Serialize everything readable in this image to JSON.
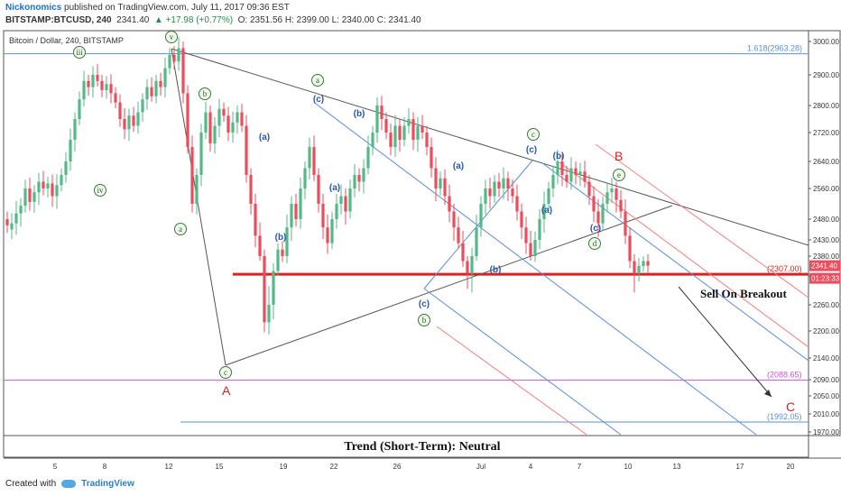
{
  "header": {
    "author": "Nickonomics",
    "published_text": "published on TradingView.com, July 11, 2017 09:36 EST",
    "symbol": "BITSTAMP:BTCUSD, 240",
    "last": "2341.40",
    "change": "▲ +17.98 (+0.77%)",
    "ohlc": "O: 2351.56  H: 2399.00  L: 2340.00  C: 2341.40"
  },
  "chart_title": "Bitcoin / Dollar, 240, BITSTAMP",
  "footer": {
    "created_with": "Created with",
    "brand": "TradingView"
  },
  "chart_data": {
    "type": "candlestick",
    "y_ticks": [
      "3000.00",
      "2900.00",
      "2800.00",
      "2720.00",
      "2640.00",
      "2560.00",
      "2480.00",
      "2430.00",
      "2380.00",
      "2300.00",
      "2260.00",
      "2200.00",
      "2140.00",
      "2090.00",
      "2050.00",
      "2010.00",
      "1970.00"
    ],
    "x_ticks": [
      "5",
      "8",
      "12",
      "15",
      "19",
      "22",
      "26",
      "Jul",
      "4",
      "7",
      "10",
      "13",
      "17",
      "20"
    ],
    "price_tags": {
      "last": "2341.40",
      "countdown": "01:23:33"
    },
    "levels": [
      {
        "label": "1.618(2963.28)",
        "value": 2963.28,
        "color": "#5b8fd6"
      },
      {
        "label": "(2307.00)",
        "value": 2307.0,
        "color": "#e02020"
      },
      {
        "label": "(2088.65)",
        "value": 2088.65,
        "color": "#c05ad0"
      },
      {
        "label": "(1992.05)",
        "value": 1992.05,
        "color": "#5b8fd6"
      }
    ],
    "annotations": {
      "sell": "Sell On Breakout",
      "trend": "Trend (Short-Term): Neutral",
      "A": "A",
      "B": "B",
      "C": "C"
    },
    "wave_labels": {
      "circled": [
        "v",
        "iii",
        "iv",
        "b",
        "a",
        "a",
        "c",
        "c",
        "b",
        "e",
        "d",
        "c"
      ],
      "blue": [
        "(c)",
        "(b)",
        "(a)",
        "(a)",
        "(b)",
        "(a)",
        "(c)",
        "(b)",
        "(a)",
        "(c)",
        "(b)",
        "(c)"
      ]
    },
    "candles": [
      [
        2480,
        2465
      ],
      [
        2455,
        2470
      ],
      [
        2470,
        2495
      ],
      [
        2495,
        2515
      ],
      [
        2515,
        2560
      ],
      [
        2560,
        2525
      ],
      [
        2525,
        2550
      ],
      [
        2550,
        2580
      ],
      [
        2580,
        2560
      ],
      [
        2560,
        2575
      ],
      [
        2575,
        2540
      ],
      [
        2540,
        2570
      ],
      [
        2570,
        2600
      ],
      [
        2600,
        2640
      ],
      [
        2640,
        2700
      ],
      [
        2700,
        2760
      ],
      [
        2760,
        2820
      ],
      [
        2820,
        2880
      ],
      [
        2880,
        2860
      ],
      [
        2860,
        2900
      ],
      [
        2900,
        2880
      ],
      [
        2880,
        2850
      ],
      [
        2850,
        2870
      ],
      [
        2870,
        2840
      ],
      [
        2840,
        2810
      ],
      [
        2810,
        2760
      ],
      [
        2760,
        2730
      ],
      [
        2730,
        2770
      ],
      [
        2770,
        2740
      ],
      [
        2740,
        2780
      ],
      [
        2780,
        2820
      ],
      [
        2820,
        2860
      ],
      [
        2860,
        2830
      ],
      [
        2830,
        2880
      ],
      [
        2880,
        2860
      ],
      [
        2860,
        2920
      ],
      [
        2920,
        2960
      ],
      [
        2960,
        2940
      ],
      [
        2940,
        2980
      ],
      [
        2980,
        2840
      ],
      [
        2840,
        2680
      ],
      [
        2680,
        2520
      ],
      [
        2520,
        2600
      ],
      [
        2600,
        2720
      ],
      [
        2720,
        2780
      ],
      [
        2780,
        2690
      ],
      [
        2690,
        2740
      ],
      [
        2740,
        2790
      ],
      [
        2790,
        2770
      ],
      [
        2770,
        2720
      ],
      [
        2720,
        2750
      ],
      [
        2750,
        2780
      ],
      [
        2780,
        2740
      ],
      [
        2740,
        2600
      ],
      [
        2600,
        2520
      ],
      [
        2520,
        2440
      ],
      [
        2440,
        2380
      ],
      [
        2380,
        2220
      ],
      [
        2220,
        2260
      ],
      [
        2260,
        2320
      ],
      [
        2320,
        2400
      ],
      [
        2400,
        2380
      ],
      [
        2380,
        2460
      ],
      [
        2460,
        2520
      ],
      [
        2520,
        2480
      ],
      [
        2480,
        2560
      ],
      [
        2560,
        2620
      ],
      [
        2620,
        2680
      ],
      [
        2680,
        2600
      ],
      [
        2600,
        2520
      ],
      [
        2520,
        2460
      ],
      [
        2460,
        2420
      ],
      [
        2420,
        2480
      ],
      [
        2480,
        2520
      ],
      [
        2520,
        2540
      ],
      [
        2540,
        2500
      ],
      [
        2500,
        2560
      ],
      [
        2560,
        2600
      ],
      [
        2600,
        2580
      ],
      [
        2580,
        2620
      ],
      [
        2620,
        2680
      ],
      [
        2680,
        2720
      ],
      [
        2720,
        2800
      ],
      [
        2800,
        2760
      ],
      [
        2760,
        2720
      ],
      [
        2720,
        2680
      ],
      [
        2680,
        2740
      ],
      [
        2740,
        2700
      ],
      [
        2700,
        2740
      ],
      [
        2740,
        2760
      ],
      [
        2760,
        2700
      ],
      [
        2700,
        2740
      ],
      [
        2740,
        2720
      ],
      [
        2720,
        2680
      ],
      [
        2680,
        2620
      ],
      [
        2620,
        2560
      ],
      [
        2560,
        2590
      ],
      [
        2590,
        2540
      ],
      [
        2540,
        2500
      ],
      [
        2500,
        2460
      ],
      [
        2460,
        2420
      ],
      [
        2420,
        2360
      ],
      [
        2360,
        2310
      ],
      [
        2310,
        2380
      ],
      [
        2380,
        2460
      ],
      [
        2460,
        2520
      ],
      [
        2520,
        2560
      ],
      [
        2560,
        2540
      ],
      [
        2540,
        2580
      ],
      [
        2580,
        2560
      ],
      [
        2560,
        2590
      ],
      [
        2590,
        2560
      ],
      [
        2560,
        2540
      ],
      [
        2540,
        2500
      ],
      [
        2500,
        2460
      ],
      [
        2460,
        2420
      ],
      [
        2420,
        2380
      ],
      [
        2380,
        2430
      ],
      [
        2430,
        2480
      ],
      [
        2480,
        2520
      ],
      [
        2520,
        2560
      ],
      [
        2560,
        2600
      ],
      [
        2600,
        2640
      ],
      [
        2640,
        2600
      ],
      [
        2600,
        2580
      ],
      [
        2580,
        2620
      ],
      [
        2620,
        2600
      ],
      [
        2600,
        2610
      ],
      [
        2610,
        2580
      ],
      [
        2580,
        2540
      ],
      [
        2540,
        2500
      ],
      [
        2500,
        2470
      ],
      [
        2470,
        2520
      ],
      [
        2520,
        2550
      ],
      [
        2550,
        2560
      ],
      [
        2560,
        2530
      ],
      [
        2530,
        2500
      ],
      [
        2500,
        2440
      ],
      [
        2440,
        2360
      ],
      [
        2360,
        2310
      ],
      [
        2310,
        2340
      ],
      [
        2340,
        2360
      ],
      [
        2360,
        2341.4
      ]
    ]
  }
}
